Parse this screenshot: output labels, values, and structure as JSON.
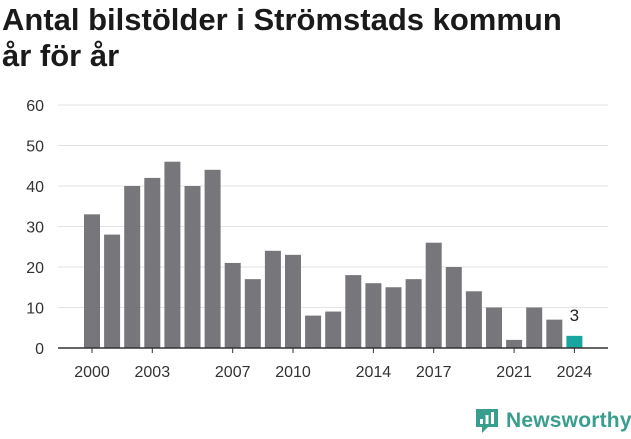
{
  "title_line1": "Antal bilstölder i Strömstads kommun",
  "title_line2": "år för år",
  "brand": {
    "name": "Newsworthy",
    "icon": "newsworthy-logo-icon",
    "color": "#3a9e8e"
  },
  "colors": {
    "bar": "#77767b",
    "highlight": "#1aa6a0",
    "grid": "#e3e3e3",
    "axis": "#333333",
    "text": "#333333"
  },
  "chart_data": {
    "type": "bar",
    "title": "Antal bilstölder i Strömstads kommun år för år",
    "categories": [
      2000,
      2001,
      2002,
      2003,
      2004,
      2005,
      2006,
      2007,
      2008,
      2009,
      2010,
      2011,
      2012,
      2013,
      2014,
      2015,
      2016,
      2017,
      2018,
      2019,
      2020,
      2021,
      2022,
      2023,
      2024
    ],
    "values": [
      33,
      28,
      40,
      42,
      46,
      40,
      44,
      21,
      17,
      24,
      23,
      8,
      9,
      18,
      16,
      15,
      17,
      26,
      20,
      14,
      10,
      2,
      10,
      7,
      3
    ],
    "highlight_category": 2024,
    "data_labels": [
      {
        "category": 2024,
        "text": "3"
      }
    ],
    "xticks": [
      "2000",
      "2003",
      "2007",
      "2010",
      "2014",
      "2017",
      "2021",
      "2024"
    ],
    "yticks": [
      0,
      10,
      20,
      30,
      40,
      50,
      60
    ],
    "ylim": [
      0,
      60
    ],
    "xlabel": "",
    "ylabel": "",
    "grid": true,
    "legend": "none"
  }
}
